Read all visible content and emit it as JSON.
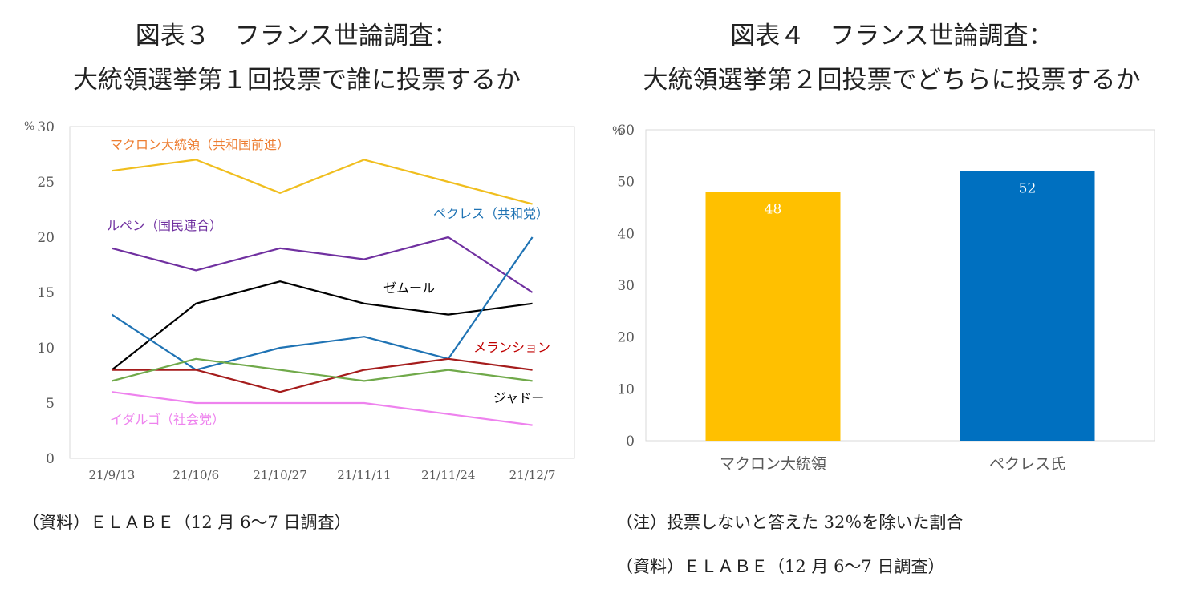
{
  "fig3": {
    "title_line1": "図表３　フランス世論調査：",
    "title_line2": "大統領選挙第１回投票で誰に投票するか",
    "source": "（資料）ＥＬＡＢＥ（12 月 6～7 日調査）"
  },
  "fig4": {
    "title_line1": "図表４　フランス世論調査：",
    "title_line2": "大統領選挙第２回投票でどちらに投票するか",
    "note": "（注）投票しないと答えた 32％を除いた割合",
    "source": "（資料）ＥＬＡＢＥ（12 月 6～7 日調査）"
  },
  "chart_data": [
    {
      "type": "line",
      "title": "図表３　フランス世論調査：大統領選挙第１回投票で誰に投票するか",
      "ylabel": "%",
      "xlabel": "",
      "ylim": [
        0,
        30
      ],
      "yticks": [
        0,
        5,
        10,
        15,
        20,
        25,
        30
      ],
      "categories": [
        "21/9/13",
        "21/10/6",
        "21/10/27",
        "21/11/11",
        "21/11/24",
        "21/12/7"
      ],
      "grid": false,
      "series": [
        {
          "name": "マクロン大統領（共和国前進）",
          "color": "#f0be1e",
          "label_color": "#ed7d31",
          "values": [
            26,
            27,
            24,
            27,
            25,
            23
          ]
        },
        {
          "name": "ルペン（国民連合）",
          "color": "#7030a0",
          "label_color": "#7030a0",
          "values": [
            19,
            17,
            19,
            18,
            20,
            15
          ]
        },
        {
          "name": "ゼムール",
          "color": "#000000",
          "label_color": "#000000",
          "values": [
            8,
            14,
            16,
            14,
            13,
            14
          ]
        },
        {
          "name": "ペクレス（共和党）",
          "color": "#1f73b4",
          "label_color": "#1f73b4",
          "values": [
            13,
            8,
            10,
            11,
            9,
            20
          ]
        },
        {
          "name": "メランション",
          "color": "#a51c1c",
          "label_color": "#c00000",
          "values": [
            8,
            8,
            6,
            8,
            9,
            8
          ]
        },
        {
          "name": "ジャドー",
          "color": "#70a94a",
          "label_color": "#000000",
          "values": [
            7,
            9,
            8,
            7,
            8,
            7
          ]
        },
        {
          "name": "イダルゴ（社会党）",
          "color": "#ee82ee",
          "label_color": "#ee82ee",
          "values": [
            6,
            5,
            5,
            5,
            4,
            3
          ]
        }
      ]
    },
    {
      "type": "bar",
      "title": "図表４　フランス世論調査：大統領選挙第２回投票でどちらに投票するか",
      "ylabel": "%",
      "xlabel": "",
      "ylim": [
        0,
        60
      ],
      "yticks": [
        0,
        10,
        20,
        30,
        40,
        50,
        60
      ],
      "categories": [
        "マクロン大統領",
        "ペクレス氏"
      ],
      "values": [
        48,
        52
      ],
      "colors": [
        "#ffc000",
        "#0070c0"
      ],
      "grid": false
    }
  ]
}
